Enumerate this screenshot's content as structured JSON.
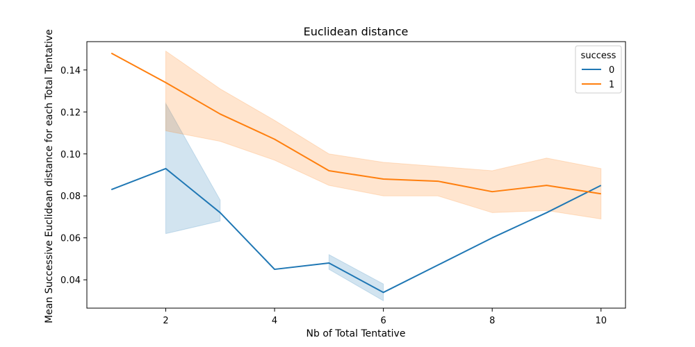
{
  "chart_data": {
    "type": "line",
    "title": "Euclidean distance",
    "xlabel": "Nb of Total Tentative",
    "ylabel": "Mean Successive Euclidean distance for each Total Tentative",
    "xlim": [
      0.55,
      10.45
    ],
    "ylim": [
      0.0265,
      0.1535
    ],
    "xticks": [
      2,
      4,
      6,
      8,
      10
    ],
    "yticks": [
      0.04,
      0.06,
      0.08,
      0.1,
      0.12,
      0.14
    ],
    "ytick_labels": [
      "0.04",
      "0.06",
      "0.08",
      "0.10",
      "0.12",
      "0.14"
    ],
    "xtick_labels": [
      "2",
      "4",
      "6",
      "8",
      "10"
    ],
    "grid": false,
    "legend": {
      "title": "success",
      "placement": "top-right"
    },
    "series": [
      {
        "name": "0",
        "color": "#1f77b4",
        "x": [
          1,
          2,
          3,
          4,
          5,
          6,
          7,
          8,
          9,
          10
        ],
        "values": [
          0.083,
          0.093,
          0.072,
          0.045,
          0.048,
          0.034,
          0.047,
          0.06,
          0.072,
          0.085
        ],
        "ci_segments": [
          {
            "x": [
              2,
              3
            ],
            "lower": [
              0.062,
              0.068
            ],
            "upper": [
              0.124,
              0.078
            ]
          },
          {
            "x": [
              5,
              6
            ],
            "lower": [
              0.045,
              0.03
            ],
            "upper": [
              0.052,
              0.038
            ]
          }
        ]
      },
      {
        "name": "1",
        "color": "#ff7f0e",
        "x": [
          1,
          2,
          3,
          4,
          5,
          6,
          7,
          8,
          9,
          10
        ],
        "values": [
          0.148,
          0.134,
          0.119,
          0.107,
          0.092,
          0.088,
          0.087,
          0.082,
          0.085,
          0.081
        ],
        "ci_segments": [
          {
            "x": [
              2,
              3,
              4,
              5,
              6,
              7,
              8,
              9,
              10
            ],
            "lower": [
              0.111,
              0.106,
              0.097,
              0.085,
              0.08,
              0.08,
              0.072,
              0.073,
              0.069
            ],
            "upper": [
              0.149,
              0.131,
              0.116,
              0.1,
              0.096,
              0.094,
              0.092,
              0.098,
              0.093
            ]
          }
        ]
      }
    ]
  }
}
